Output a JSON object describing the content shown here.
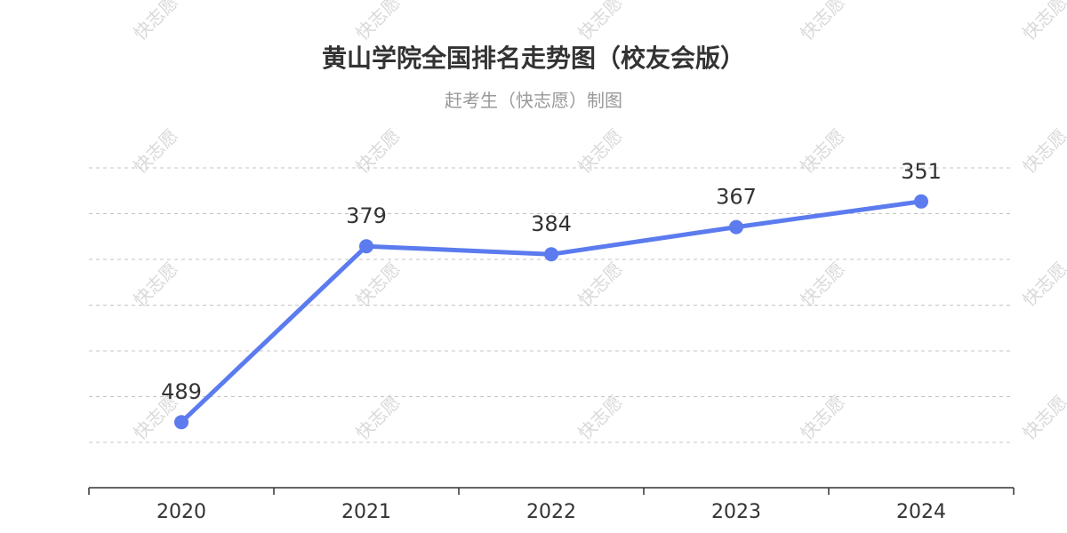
{
  "chart_data": {
    "type": "line",
    "title": "黄山学院全国排名走势图（校友会版）",
    "subtitle": "赶考生（快志愿）制图",
    "categories": [
      "2020",
      "2021",
      "2022",
      "2023",
      "2024"
    ],
    "series": [
      {
        "values": [
          489,
          379,
          384,
          367,
          351
        ]
      }
    ],
    "xlabel": "",
    "ylabel": "",
    "y_inverted": true,
    "ylim": [
      330,
      530
    ],
    "grid": true,
    "line_color": "#5B7BEE",
    "watermark_text": "快志愿"
  }
}
